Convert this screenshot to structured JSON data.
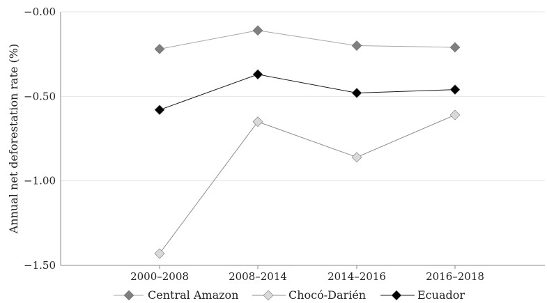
{
  "chart_data": {
    "type": "line",
    "categories": [
      "2000–2008",
      "2008–2014",
      "2014–2016",
      "2016–2018"
    ],
    "series": [
      {
        "name": "Central Amazon",
        "values": [
          -0.22,
          -0.11,
          -0.2,
          -0.21
        ],
        "color": "#7f7f7f",
        "line_color": "#a6a6a6",
        "marker": "diamond"
      },
      {
        "name": "Chocó-Darién",
        "values": [
          -1.43,
          -0.65,
          -0.86,
          -0.61
        ],
        "color": "#d9d9d9",
        "line_color": "#8c8c8c",
        "marker": "diamond"
      },
      {
        "name": "Ecuador",
        "values": [
          -0.58,
          -0.37,
          -0.48,
          -0.46
        ],
        "color": "#000000",
        "line_color": "#1a1a1a",
        "marker": "diamond"
      }
    ],
    "ylabel": "Annual net deforestation rate (%)",
    "xlabel": "",
    "ylim": [
      -1.5,
      0.0
    ],
    "y_ticks": [
      -1.5,
      -1.0,
      -0.5,
      0.0
    ],
    "y_tick_labels": [
      "−1.50",
      "−1.00",
      "−0.50",
      "−0.00"
    ],
    "grid": true,
    "legend_position": "bottom"
  }
}
